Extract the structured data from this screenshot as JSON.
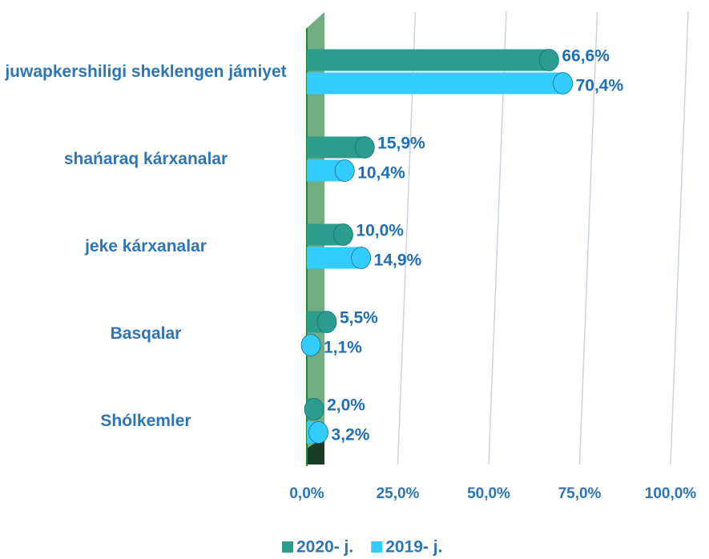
{
  "chart_data": {
    "type": "bar",
    "orientation": "horizontal",
    "categories": [
      "juwapkershiligi sheklengen jámiyet",
      "shańaraq kárxanalar",
      "jeke kárxanalar",
      "Basqalar",
      "Shólkemler"
    ],
    "series": [
      {
        "name": "2020- j.",
        "color": "#2a9d8f",
        "values": [
          66.6,
          15.9,
          10.0,
          5.5,
          2.0
        ],
        "value_labels": [
          "66,6%",
          "15,9%",
          "10,0%",
          "5,5%",
          "2,0%"
        ]
      },
      {
        "name": "2019- j.",
        "color": "#33ccff",
        "values": [
          70.4,
          10.4,
          14.9,
          1.1,
          3.2
        ],
        "value_labels": [
          "70,4%",
          "10,4%",
          "14,9%",
          "1,1%",
          "3,2%"
        ]
      }
    ],
    "xlim": [
      0,
      100
    ],
    "xticks": [
      {
        "value": 0,
        "label": "0,0%"
      },
      {
        "value": 25,
        "label": "25,0%"
      },
      {
        "value": 50,
        "label": "50,0%"
      },
      {
        "value": 75,
        "label": "75,0%"
      },
      {
        "value": 100,
        "label": "100,0%"
      }
    ],
    "grid": true,
    "legend": "bottom"
  }
}
